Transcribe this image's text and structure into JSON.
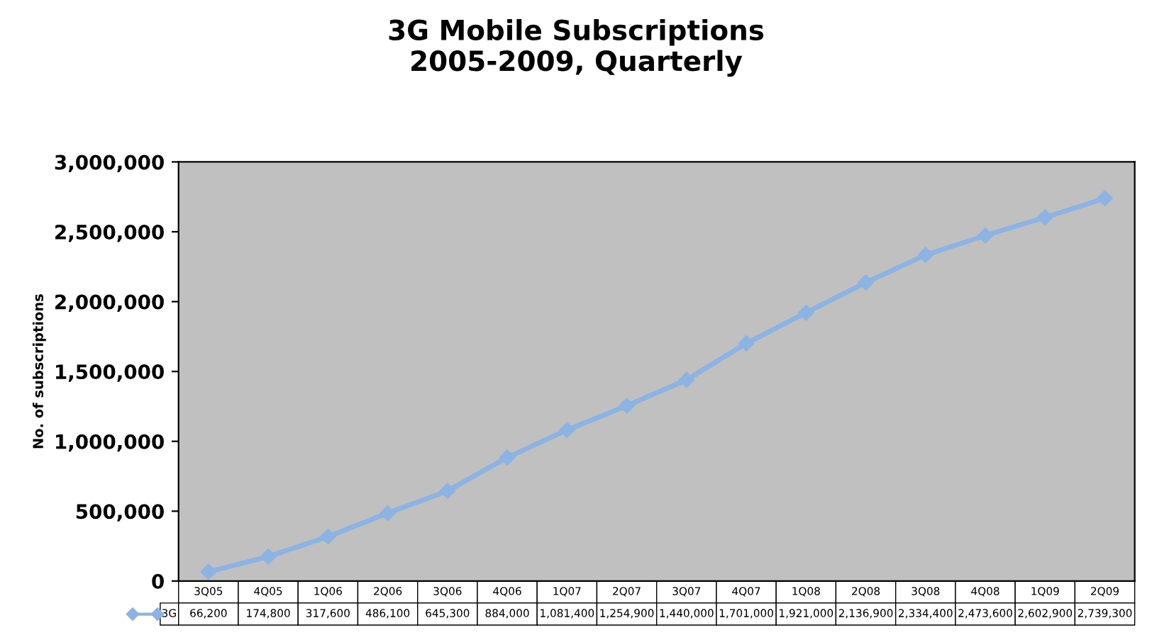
{
  "chart_data": {
    "type": "line",
    "title": "3G Mobile Subscriptions\n2005-2009, Quarterly",
    "ylabel": "No. of subscriptions",
    "categories": [
      "3Q05",
      "4Q05",
      "1Q06",
      "2Q06",
      "3Q06",
      "4Q06",
      "1Q07",
      "2Q07",
      "3Q07",
      "4Q07",
      "1Q08",
      "2Q08",
      "3Q08",
      "4Q08",
      "1Q09",
      "2Q09"
    ],
    "series": [
      {
        "name": "3G",
        "color": "#8db3e2",
        "values": [
          66200,
          174800,
          317600,
          486100,
          645300,
          884000,
          1081400,
          1254900,
          1440000,
          1701000,
          1921000,
          2136900,
          2334400,
          2473600,
          2602900,
          2739300
        ],
        "value_labels": [
          "66,200",
          "174,800",
          "317,600",
          "486,100",
          "645,300",
          "884,000",
          "1,081,400",
          "1,254,900",
          "1,440,000",
          "1,701,000",
          "1,921,000",
          "2,136,900",
          "2,334,400",
          "2,473,600",
          "2,602,900",
          "2,739,300"
        ]
      }
    ],
    "ylim": [
      0,
      3000000
    ],
    "yticks": [
      {
        "value": 0,
        "label": "0"
      },
      {
        "value": 500000,
        "label": "500,000"
      },
      {
        "value": 1000000,
        "label": "1,000,000"
      },
      {
        "value": 1500000,
        "label": "1,500,000"
      },
      {
        "value": 2000000,
        "label": "2,000,000"
      },
      {
        "value": 2500000,
        "label": "2,500,000"
      },
      {
        "value": 3000000,
        "label": "3,000,000"
      }
    ],
    "legend": "bottom",
    "marker": "diamond",
    "grid": false
  }
}
